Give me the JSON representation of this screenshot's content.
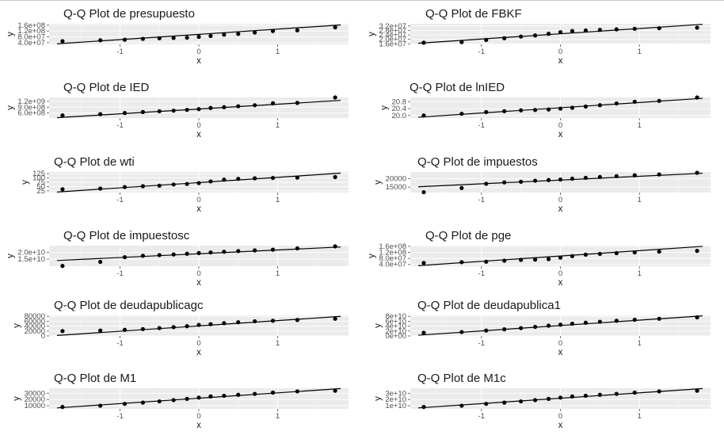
{
  "colors": {
    "panel": "#ebebeb",
    "gridMajor": "#ffffff",
    "gridMinor": "#f4f4f4",
    "point": "#000000",
    "line": "#000000",
    "text": "#1a1a1a",
    "tick": "#4d4d4d"
  },
  "chart_data": [
    {
      "type": "scatter",
      "title": "Q-Q Plot de presupuesto",
      "xlabel": "x",
      "ylabel": "y",
      "x": [
        -1.73,
        -1.25,
        -0.94,
        -0.71,
        -0.5,
        -0.32,
        -0.15,
        0,
        0.15,
        0.32,
        0.5,
        0.71,
        0.94,
        1.25,
        1.73
      ],
      "y": [
        50000000,
        56000000,
        60000000,
        66000000,
        70000000,
        72000000,
        74000000,
        80000000,
        86000000,
        95000000,
        100000000,
        110000000,
        120000000,
        125000000,
        145000000
      ],
      "line": {
        "x": [
          -1.8,
          1.8
        ],
        "y": [
          32000000,
          162000000
        ]
      },
      "xlim": [
        -1.9,
        1.9
      ],
      "ylim": [
        28000000,
        170000000
      ],
      "xticks": [
        -1,
        0,
        1
      ],
      "yticks": [
        40000000,
        80000000,
        120000000,
        160000000
      ],
      "yticklabels": [
        "4.0e+07",
        "8.0e+07",
        "1.2e+08",
        "1.6e+08"
      ]
    },
    {
      "type": "scatter",
      "title": "Q-Q Plot de FBKF",
      "xlabel": "x",
      "ylabel": "y",
      "x": [
        -1.73,
        -1.25,
        -0.94,
        -0.71,
        -0.5,
        -0.32,
        -0.15,
        0,
        0.15,
        0.32,
        0.5,
        0.71,
        0.94,
        1.25,
        1.73
      ],
      "y": [
        17000000,
        17500000,
        19500000,
        21000000,
        22500000,
        23500000,
        25000000,
        26500000,
        27500000,
        28000000,
        28500000,
        29000000,
        29500000,
        30000000,
        30500000
      ],
      "line": {
        "x": [
          -1.8,
          1.8
        ],
        "y": [
          16500000,
          33500000
        ]
      },
      "xlim": [
        -1.9,
        1.9
      ],
      "ylim": [
        15500000,
        34000000
      ],
      "xticks": [
        -1,
        0,
        1
      ],
      "yticks": [
        16000000,
        20000000,
        24000000,
        28000000,
        32000000
      ],
      "yticklabels": [
        "1.6e+07",
        "2.0e+07",
        "2.4e+07",
        "2.8e+07",
        "3.2e+07"
      ]
    },
    {
      "type": "scatter",
      "title": "Q-Q Plot de IED",
      "xlabel": "x",
      "ylabel": "y",
      "x": [
        -1.73,
        -1.25,
        -0.94,
        -0.71,
        -0.5,
        -0.32,
        -0.15,
        0,
        0.15,
        0.32,
        0.5,
        0.71,
        0.94,
        1.25,
        1.73
      ],
      "y": [
        480000000,
        540000000,
        600000000,
        650000000,
        690000000,
        720000000,
        760000000,
        800000000,
        860000000,
        900000000,
        950000000,
        1000000000,
        1100000000,
        1120000000,
        1400000000
      ],
      "line": {
        "x": [
          -1.8,
          1.8
        ],
        "y": [
          360000000,
          1250000000
        ]
      },
      "xlim": [
        -1.9,
        1.9
      ],
      "ylim": [
        340000000,
        1400000000
      ],
      "xticks": [
        -1,
        0,
        1
      ],
      "yticks": [
        600000000,
        900000000,
        1200000000
      ],
      "yticklabels": [
        "6.0e+08",
        "9.0e+08",
        "1.2e+09"
      ]
    },
    {
      "type": "scatter",
      "title": "Q-Q Plot de lnIED",
      "xlabel": "x",
      "ylabel": "y",
      "x": [
        -1.73,
        -1.25,
        -0.94,
        -0.71,
        -0.5,
        -0.32,
        -0.15,
        0,
        0.15,
        0.32,
        0.5,
        0.71,
        0.94,
        1.25,
        1.73
      ],
      "y": [
        20.0,
        20.1,
        20.2,
        20.25,
        20.3,
        20.32,
        20.35,
        20.4,
        20.45,
        20.52,
        20.6,
        20.7,
        20.8,
        20.85,
        21.05
      ],
      "line": {
        "x": [
          -1.8,
          1.8
        ],
        "y": [
          19.9,
          21.0
        ]
      },
      "xlim": [
        -1.9,
        1.9
      ],
      "ylim": [
        19.85,
        21.05
      ],
      "xticks": [
        -1,
        0,
        1
      ],
      "yticks": [
        20.0,
        20.4,
        20.8
      ],
      "yticklabels": [
        "20.0",
        "20.4",
        "20.8"
      ]
    },
    {
      "type": "scatter",
      "title": "Q-Q Plot de wti",
      "xlabel": "x",
      "ylabel": "y",
      "x": [
        -1.73,
        -1.25,
        -0.94,
        -0.71,
        -0.5,
        -0.32,
        -0.15,
        0,
        0.15,
        0.32,
        0.5,
        0.71,
        0.94,
        1.25,
        1.73
      ],
      "y": [
        34,
        38,
        47,
        52,
        55,
        62,
        65,
        70,
        80,
        90,
        95,
        98,
        100,
        102,
        105
      ],
      "line": {
        "x": [
          -1.8,
          1.8
        ],
        "y": [
          18,
          128
        ]
      },
      "xlim": [
        -1.9,
        1.9
      ],
      "ylim": [
        15,
        135
      ],
      "xticks": [
        -1,
        0,
        1
      ],
      "yticks": [
        25,
        50,
        75,
        100,
        125
      ],
      "yticklabels": [
        "25",
        "50",
        "75",
        "100",
        "125"
      ]
    },
    {
      "type": "scatter",
      "title": "Q-Q Plot de impuestos",
      "xlabel": "x",
      "ylabel": "y",
      "x": [
        -1.73,
        -1.25,
        -0.94,
        -0.71,
        -0.5,
        -0.32,
        -0.15,
        0,
        0.15,
        0.32,
        0.5,
        0.71,
        0.94,
        1.25,
        1.73
      ],
      "y": [
        12000,
        14500,
        17000,
        17800,
        18200,
        18800,
        19200,
        19500,
        20000,
        20500,
        21000,
        21500,
        22000,
        22500,
        23500
      ],
      "line": {
        "x": [
          -1.8,
          1.8
        ],
        "y": [
          15200,
          23200
        ]
      },
      "xlim": [
        -1.9,
        1.9
      ],
      "ylim": [
        11800,
        24000
      ],
      "xticks": [
        -1,
        0,
        1
      ],
      "yticks": [
        15000,
        20000
      ],
      "yticklabels": [
        "15000",
        "20000"
      ]
    },
    {
      "type": "scatter",
      "title": "Q-Q Plot de impuestosc",
      "xlabel": "x",
      "ylabel": "y",
      "x": [
        -1.73,
        -1.25,
        -0.94,
        -0.71,
        -0.5,
        -0.32,
        -0.15,
        0,
        0.15,
        0.32,
        0.5,
        0.71,
        0.94,
        1.25,
        1.73
      ],
      "y": [
        10000000000,
        13000000000,
        16500000000,
        17500000000,
        18000000000,
        18500000000,
        19000000000,
        19500000000,
        20000000000,
        20500000000,
        21000000000,
        21500000000,
        22000000000,
        23000000000,
        24500000000
      ],
      "line": {
        "x": [
          -1.8,
          1.8
        ],
        "y": [
          14000000000,
          24000000000
        ]
      },
      "xlim": [
        -1.9,
        1.9
      ],
      "ylim": [
        9800000000,
        25000000000
      ],
      "xticks": [
        -1,
        0,
        1
      ],
      "yticks": [
        15000000000,
        20000000000
      ],
      "yticklabels": [
        "1.5e+10",
        "2.0e+10"
      ]
    },
    {
      "type": "scatter",
      "title": "Q-Q Plot de pge",
      "xlabel": "x",
      "ylabel": "y",
      "x": [
        -1.73,
        -1.25,
        -0.94,
        -0.71,
        -0.5,
        -0.32,
        -0.15,
        0,
        0.15,
        0.32,
        0.5,
        0.71,
        0.94,
        1.25,
        1.73
      ],
      "y": [
        50000000,
        55000000,
        58000000,
        65000000,
        70000000,
        72000000,
        75000000,
        85000000,
        95000000,
        105000000,
        110000000,
        115000000,
        120000000,
        125000000,
        130000000
      ],
      "line": {
        "x": [
          -1.8,
          1.8
        ],
        "y": [
          32000000,
          160000000
        ]
      },
      "xlim": [
        -1.9,
        1.9
      ],
      "ylim": [
        28000000,
        165000000
      ],
      "xticks": [
        -1,
        0,
        1
      ],
      "yticks": [
        40000000,
        80000000,
        120000000,
        160000000
      ],
      "yticklabels": [
        "4.0e+07",
        "8.0e+07",
        "1.2e+08",
        "1.6e+08"
      ]
    },
    {
      "type": "scatter",
      "title": "Q-Q Plot de deudapublicagc",
      "xlabel": "x",
      "ylabel": "y",
      "x": [
        -1.73,
        -1.25,
        -0.94,
        -0.71,
        -0.5,
        -0.32,
        -0.15,
        0,
        0.15,
        0.32,
        0.5,
        0.71,
        0.94,
        1.25,
        1.73
      ],
      "y": [
        20000,
        22000,
        25000,
        28000,
        32000,
        36000,
        40000,
        45000,
        48000,
        52000,
        56000,
        60000,
        62000,
        65000,
        70000
      ],
      "line": {
        "x": [
          -1.8,
          1.8
        ],
        "y": [
          2000,
          80000
        ]
      },
      "xlim": [
        -1.9,
        1.9
      ],
      "ylim": [
        0,
        84000
      ],
      "xticks": [
        -1,
        0,
        1
      ],
      "yticks": [
        0,
        20000,
        40000,
        60000,
        80000
      ],
      "yticklabels": [
        "0",
        "20000",
        "40000",
        "60000",
        "80000"
      ]
    },
    {
      "type": "scatter",
      "title": "Q-Q Plot de deudapublica1",
      "xlabel": "x",
      "ylabel": "y",
      "x": [
        -1.73,
        -1.25,
        -0.94,
        -0.71,
        -0.5,
        -0.32,
        -0.15,
        0,
        0.15,
        0.32,
        0.5,
        0.71,
        0.94,
        1.25,
        1.73
      ],
      "y": [
        13000000000,
        16000000000,
        22000000000,
        27000000000,
        32000000000,
        37000000000,
        42000000000,
        46000000000,
        50000000000,
        54000000000,
        58000000000,
        62000000000,
        66000000000,
        70000000000,
        76000000000
      ],
      "line": {
        "x": [
          -1.8,
          1.8
        ],
        "y": [
          3000000000,
          82000000000
        ]
      },
      "xlim": [
        -1.9,
        1.9
      ],
      "ylim": [
        0,
        84000000000
      ],
      "xticks": [
        -1,
        0,
        1
      ],
      "yticks": [
        0,
        20000000000,
        40000000000,
        60000000000,
        80000000000
      ],
      "yticklabels": [
        "0e+00",
        "2e+10",
        "4e+10",
        "6e+10",
        "8e+10"
      ]
    },
    {
      "type": "scatter",
      "title": "Q-Q Plot de M1",
      "xlabel": "x",
      "ylabel": "y",
      "x": [
        -1.73,
        -1.25,
        -0.94,
        -0.71,
        -0.5,
        -0.32,
        -0.15,
        0,
        0.15,
        0.32,
        0.5,
        0.71,
        0.94,
        1.25,
        1.73
      ],
      "y": [
        8000,
        10000,
        13000,
        15000,
        17000,
        19000,
        21000,
        23000,
        25000,
        26000,
        27500,
        29000,
        31000,
        33000,
        34000
      ],
      "line": {
        "x": [
          -1.8,
          1.8
        ],
        "y": [
          6500,
          37500
        ]
      },
      "xlim": [
        -1.9,
        1.9
      ],
      "ylim": [
        5000,
        38000
      ],
      "xticks": [
        -1,
        0,
        1
      ],
      "yticks": [
        10000,
        20000,
        30000
      ],
      "yticklabels": [
        "10000",
        "20000",
        "30000"
      ]
    },
    {
      "type": "scatter",
      "title": "Q-Q Plot de M1c",
      "xlabel": "x",
      "ylabel": "y",
      "x": [
        -1.73,
        -1.25,
        -0.94,
        -0.71,
        -0.5,
        -0.32,
        -0.15,
        0,
        0.15,
        0.32,
        0.5,
        0.71,
        0.94,
        1.25,
        1.73
      ],
      "y": [
        8000000000,
        10000000000,
        13000000000,
        15000000000,
        17000000000,
        19000000000,
        21000000000,
        23000000000,
        25000000000,
        26000000000,
        27500000000,
        29000000000,
        31000000000,
        33000000000,
        34000000000
      ],
      "line": {
        "x": [
          -1.8,
          1.8
        ],
        "y": [
          6500000000,
          37500000000
        ]
      },
      "xlim": [
        -1.9,
        1.9
      ],
      "ylim": [
        5000000000,
        38000000000
      ],
      "xticks": [
        -1,
        0,
        1
      ],
      "yticks": [
        10000000000,
        20000000000,
        30000000000
      ],
      "yticklabels": [
        "1e+10",
        "2e+10",
        "3e+10"
      ]
    }
  ]
}
